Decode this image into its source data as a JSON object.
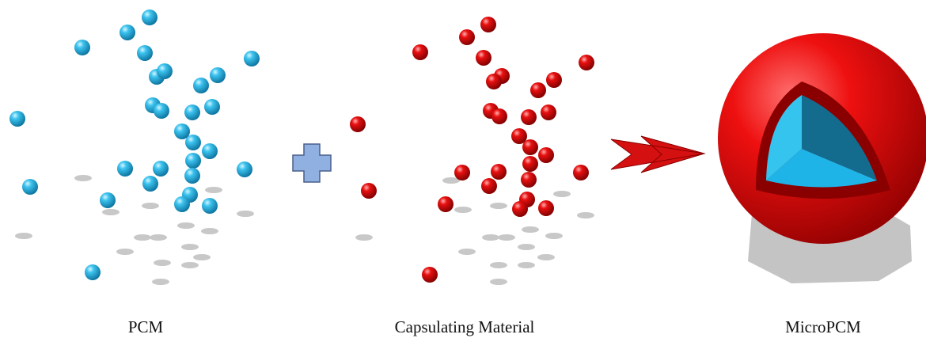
{
  "labels": {
    "pcm": "PCM",
    "capsulating": "Capsulating Material",
    "micropcm": "MicroPCM"
  }
}
